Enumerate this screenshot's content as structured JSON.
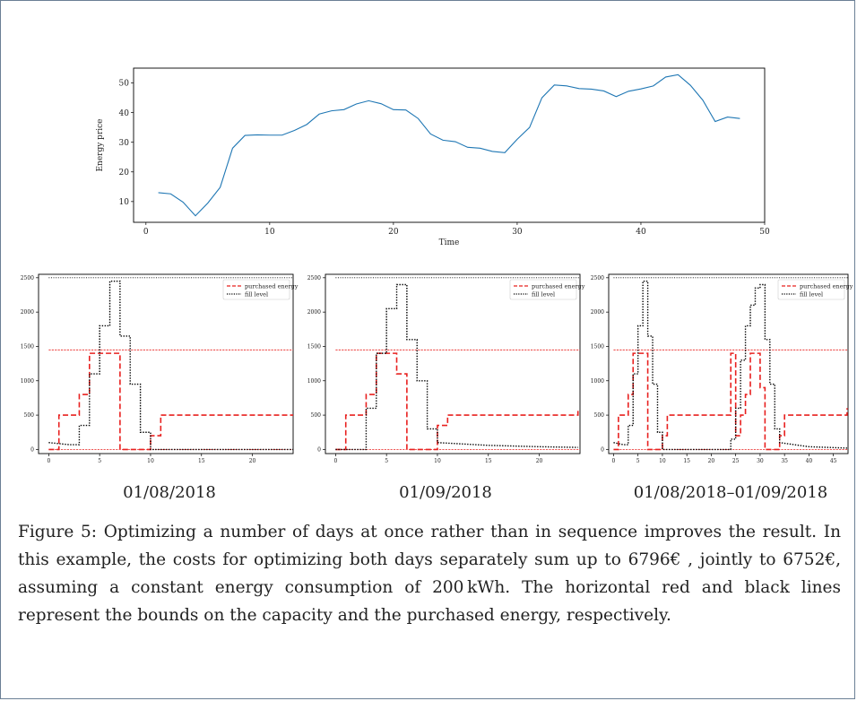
{
  "caption": "Figure 5: Optimizing a number of days at once rather than in sequence improves the result. In this example, the costs for optimizing both days separately sum up to 6796€ , jointly to 6752€, assuming a constant energy consumption of 200 kWh. The horizontal red and black lines represent the bounds on the capacity and the purchased energy, respectively.",
  "chart_data": [
    {
      "type": "line",
      "xlabel": "Time",
      "ylabel": "Energy price",
      "xlim": [
        -1,
        50
      ],
      "ylim": [
        3,
        55
      ],
      "xticks": [
        0,
        10,
        20,
        30,
        40,
        50
      ],
      "yticks": [
        10,
        20,
        30,
        40,
        50
      ],
      "color": "#1f77b4",
      "x": [
        1,
        2,
        3,
        4,
        5,
        6,
        7,
        8,
        9,
        10,
        11,
        12,
        13,
        14,
        15,
        16,
        17,
        18,
        19,
        20,
        21,
        22,
        23,
        24,
        25,
        26,
        27,
        28,
        29,
        30,
        31,
        32,
        33,
        34,
        35,
        36,
        37,
        38,
        39,
        40,
        41,
        42,
        43,
        44,
        45,
        46,
        47,
        48
      ],
      "y": [
        13.0,
        12.6,
        9.8,
        5.2,
        9.5,
        14.8,
        28.0,
        32.3,
        32.5,
        32.4,
        32.4,
        34.0,
        36.0,
        39.5,
        40.6,
        41.0,
        42.9,
        44.0,
        43.0,
        41.0,
        40.9,
        38.0,
        32.8,
        30.7,
        30.2,
        28.3,
        28.0,
        26.9,
        26.5,
        31.0,
        35.0,
        45.0,
        49.3,
        49.0,
        48.1,
        47.9,
        47.3,
        45.4,
        47.2,
        48.0,
        49.0,
        52.0,
        52.8,
        49.2,
        44.2,
        37.0,
        38.5,
        38.0
      ]
    },
    {
      "type": "line",
      "title": "01/08/2018",
      "xlim": [
        -1,
        24
      ],
      "ylim": [
        -60,
        2550
      ],
      "xticks": [
        0,
        5,
        10,
        15,
        20
      ],
      "yticks": [
        0,
        500,
        1000,
        1500,
        2000,
        2500
      ],
      "bounds": {
        "capacity": 2500,
        "purchase": 1450
      },
      "series": [
        {
          "name": "purchased energy",
          "color": "#e8201f",
          "style": "dashed",
          "x": [
            0,
            1,
            1,
            3,
            3,
            4,
            4,
            5,
            5,
            7,
            7,
            10,
            10,
            11,
            11,
            24
          ],
          "y": [
            0,
            0,
            500,
            500,
            800,
            800,
            1400,
            1400,
            1400,
            1400,
            0,
            0,
            200,
            200,
            500,
            500
          ]
        },
        {
          "name": "fill level",
          "color": "#000000",
          "style": "dotted",
          "x": [
            0,
            2,
            3,
            3,
            4,
            4,
            5,
            5,
            6,
            6,
            7,
            7,
            8,
            8,
            9,
            9,
            10,
            10,
            24
          ],
          "y": [
            100,
            70,
            70,
            350,
            350,
            1100,
            1100,
            1800,
            1800,
            2450,
            2450,
            1650,
            1650,
            950,
            950,
            250,
            250,
            0,
            0
          ]
        }
      ]
    },
    {
      "type": "line",
      "title": "01/09/2018",
      "xlim": [
        -1,
        24
      ],
      "ylim": [
        -60,
        2550
      ],
      "xticks": [
        0,
        5,
        10,
        15,
        20
      ],
      "yticks": [
        0,
        500,
        1000,
        1500,
        2000,
        2500
      ],
      "bounds": {
        "capacity": 2500,
        "purchase": 1450
      },
      "series": [
        {
          "name": "purchased energy",
          "color": "#e8201f",
          "style": "dashed",
          "x": [
            0,
            1,
            1,
            3,
            3,
            4,
            4,
            6,
            6,
            7,
            7,
            10,
            10,
            11,
            11,
            23.8,
            23.8
          ],
          "y": [
            0,
            0,
            500,
            500,
            800,
            800,
            1400,
            1400,
            1100,
            1100,
            0,
            0,
            350,
            350,
            500,
            500,
            600
          ]
        },
        {
          "name": "fill level",
          "color": "#000000",
          "style": "dotted",
          "x": [
            0,
            3,
            3,
            4,
            4,
            5,
            5,
            6,
            6,
            7,
            7,
            8,
            8,
            9,
            9,
            10,
            10,
            15,
            20,
            23.8
          ],
          "y": [
            0,
            0,
            600,
            600,
            1400,
            1400,
            2050,
            2050,
            2400,
            2400,
            1600,
            1600,
            1000,
            1000,
            300,
            300,
            100,
            60,
            40,
            30
          ]
        }
      ]
    },
    {
      "type": "line",
      "title": "01/08/2018–01/09/2018",
      "xlim": [
        -1,
        48
      ],
      "ylim": [
        -60,
        2550
      ],
      "xticks": [
        0,
        5,
        10,
        15,
        20,
        25,
        30,
        35,
        40,
        45
      ],
      "yticks": [
        0,
        500,
        1000,
        1500,
        2000,
        2500
      ],
      "bounds": {
        "capacity": 2500,
        "purchase": 1450
      },
      "series": [
        {
          "name": "purchased energy",
          "color": "#e8201f",
          "style": "dashed",
          "x": [
            0,
            1,
            1,
            3,
            3,
            4,
            4,
            5,
            5,
            7,
            7,
            10,
            10,
            11,
            11,
            24,
            24,
            25,
            25,
            26,
            26,
            27,
            27,
            28,
            28,
            30,
            30,
            31,
            31,
            34,
            34,
            35,
            35,
            47.8,
            47.8
          ],
          "y": [
            0,
            0,
            500,
            500,
            800,
            800,
            1400,
            1400,
            1400,
            1400,
            0,
            0,
            200,
            200,
            500,
            500,
            1400,
            1400,
            200,
            200,
            500,
            500,
            800,
            800,
            1400,
            1400,
            900,
            900,
            0,
            0,
            200,
            200,
            500,
            500,
            600
          ]
        },
        {
          "name": "fill level",
          "color": "#000000",
          "style": "dotted",
          "x": [
            0,
            2,
            3,
            3,
            4,
            4,
            5,
            5,
            6,
            6,
            7,
            7,
            8,
            8,
            9,
            9,
            10,
            10,
            24,
            24,
            25,
            25,
            26,
            26,
            27,
            27,
            28,
            28,
            29,
            29,
            30,
            30,
            31,
            31,
            32,
            32,
            33,
            33,
            34,
            34,
            40,
            47.8
          ],
          "y": [
            100,
            70,
            70,
            350,
            350,
            1100,
            1100,
            1800,
            1800,
            2450,
            2450,
            1650,
            1650,
            950,
            950,
            250,
            250,
            0,
            0,
            150,
            150,
            600,
            600,
            1300,
            1300,
            1800,
            1800,
            2100,
            2100,
            2350,
            2350,
            2400,
            2400,
            1600,
            1600,
            950,
            950,
            300,
            300,
            100,
            40,
            20
          ]
        }
      ]
    }
  ]
}
